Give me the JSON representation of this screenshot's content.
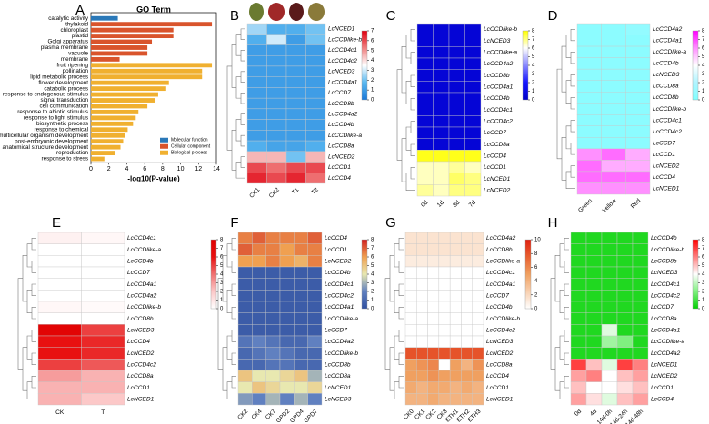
{
  "chart_data": [
    {
      "type": "bar",
      "panel": "A",
      "title": "GO Term",
      "x_label": "-log10(P-value)",
      "categories": [
        "catalytic activity",
        "thylakoid",
        "chloroplast",
        "plastid",
        "Golgi apparatus",
        "plasma membrane",
        "vacuole",
        "membrane",
        "fruit ripening",
        "pollination",
        "lipid metabolic process",
        "flower development",
        "catabolic process",
        "response to endogenous stimulus",
        "signal transduction",
        "cell communication",
        "response to abiotic stimulus",
        "response to light stimulus",
        "biosynthetic process",
        "response to chemical",
        "multicellular organism development",
        "post-embryonic development",
        "anatomical structure development",
        "reproduction",
        "response to stress"
      ],
      "series": [
        {
          "name": "Molecular function",
          "color": "#2a78b8",
          "values": [
            3,
            null,
            null,
            null,
            null,
            null,
            null,
            null,
            null,
            null,
            null,
            null,
            null,
            null,
            null,
            null,
            null,
            null,
            null,
            null,
            null,
            null,
            null,
            null,
            null
          ]
        },
        {
          "name": "Cellular component",
          "color": "#d9542c",
          "values": [
            null,
            13.5,
            9.2,
            9.2,
            6.8,
            6.3,
            6.3,
            3.2,
            null,
            null,
            null,
            null,
            null,
            null,
            null,
            null,
            null,
            null,
            null,
            null,
            null,
            null,
            null,
            null,
            null
          ]
        },
        {
          "name": "Biological process",
          "color": "#f0b030",
          "values": [
            null,
            null,
            null,
            null,
            null,
            null,
            null,
            null,
            13.5,
            12.4,
            12.4,
            8.7,
            8.4,
            7.5,
            7.2,
            6.3,
            5.3,
            5.0,
            4.7,
            4.1,
            3.8,
            3.6,
            3.3,
            2.7,
            1.5
          ]
        }
      ],
      "xlim": [
        0,
        14
      ],
      "xticks": [
        0,
        2,
        4,
        6,
        8,
        10,
        12,
        14
      ],
      "legend": "lower right"
    },
    {
      "type": "heatmap",
      "panel": "B",
      "categories": [
        "CK1",
        "CK2",
        "T1",
        "T2"
      ],
      "rows": [
        "LcNCED1",
        "LcCCDlike-b",
        "LcCCD4c1",
        "LcCCD4c2",
        "LcNCED3",
        "LcCCD4a1",
        "LcCCD7",
        "LcCCD8b",
        "LcCCD4a2",
        "LcCCD4b",
        "LcCCDlike-a",
        "LcCCD8a",
        "LcNCED2",
        "LcCCD1",
        "LcCCD4"
      ],
      "values": [
        [
          2.5,
          1.5,
          1.5,
          2
        ],
        [
          1.5,
          3,
          1,
          2
        ],
        [
          1,
          1,
          1,
          1
        ],
        [
          1,
          1,
          1,
          1
        ],
        [
          1,
          1,
          1,
          1
        ],
        [
          1,
          1,
          1,
          1
        ],
        [
          1,
          1,
          1,
          1
        ],
        [
          1,
          1,
          1,
          1
        ],
        [
          1,
          1,
          1,
          1
        ],
        [
          1,
          1,
          1,
          1
        ],
        [
          1,
          1,
          1,
          1
        ],
        [
          1.5,
          1.2,
          1.2,
          1.5
        ],
        [
          4.5,
          4.5,
          2,
          4.5
        ],
        [
          6,
          5.5,
          6,
          6
        ],
        [
          6.5,
          6,
          6.5,
          5.5
        ]
      ],
      "zlim": [
        0,
        7
      ],
      "zticks": [
        0,
        1,
        2,
        3,
        4,
        5,
        6,
        7
      ],
      "colormap": [
        "#1a78d8",
        "#5ab8f0",
        "#ffffff",
        "#f08080",
        "#e00010"
      ]
    },
    {
      "type": "heatmap",
      "panel": "C",
      "categories": [
        "0d",
        "1d",
        "3d",
        "7d"
      ],
      "rows": [
        "LcCCDlike-b",
        "LcNCED3",
        "LcCCDlike-a",
        "LcCCD4a2",
        "LcCCD8b",
        "LcCCD4a1",
        "LcCCD4b",
        "LcCCD4c1",
        "LcCCD4c2",
        "LcCCD7",
        "LcCCD8a",
        "LcCCD4",
        "LcCCD1",
        "LcNCED1",
        "LcNCED2"
      ],
      "values": [
        [
          0.5,
          0.5,
          0.5,
          0.5
        ],
        [
          0.5,
          0.5,
          0.5,
          0.5
        ],
        [
          0.5,
          0.5,
          0.5,
          0.5
        ],
        [
          0.5,
          0.5,
          0.5,
          0.5
        ],
        [
          0.5,
          0.5,
          0.5,
          0.5
        ],
        [
          0.5,
          0.5,
          0.5,
          0.5
        ],
        [
          0.5,
          0.5,
          0.5,
          0.5
        ],
        [
          0.5,
          0.5,
          0.5,
          0.5
        ],
        [
          0.5,
          0.5,
          0.5,
          0.5
        ],
        [
          0.5,
          0.5,
          0.5,
          0.5
        ],
        [
          0.5,
          0.5,
          0.5,
          0.5
        ],
        [
          7.8,
          7.8,
          7.8,
          7.8
        ],
        [
          6.5,
          6.5,
          6.8,
          6.5
        ],
        [
          6.5,
          6.5,
          7.2,
          7
        ],
        [
          6.8,
          6.5,
          7,
          7
        ]
      ],
      "zlim": [
        0,
        8
      ],
      "zticks": [
        0,
        1,
        2,
        3,
        4,
        5,
        6,
        7,
        8
      ],
      "colormap": [
        "#0000c8",
        "#1414ff",
        "#8888ff",
        "#ffffff",
        "#ffff00"
      ]
    },
    {
      "type": "heatmap",
      "panel": "D",
      "categories": [
        "Green",
        "Yellow",
        "Red"
      ],
      "rows": [
        "LcCCD4a2",
        "LcCCD4a1",
        "LcCCDlike-a",
        "LcCCD4b",
        "LcNCED3",
        "LcCCD8a",
        "LcCCD8b",
        "LcCCDlike-b",
        "LcCCD4c1",
        "LcCCD4c2",
        "LcCCD7",
        "LcCCD1",
        "LcNCED2",
        "LcCCD4",
        "LcNCED1"
      ],
      "values": [
        [
          0.5,
          0.5,
          0.8
        ],
        [
          0.5,
          0.5,
          0.5
        ],
        [
          0.5,
          0.5,
          0.5
        ],
        [
          0.5,
          0.5,
          0.5
        ],
        [
          0.5,
          0.5,
          0.5
        ],
        [
          0.5,
          0.5,
          0.5
        ],
        [
          0.5,
          0.5,
          0.5
        ],
        [
          0.5,
          0.5,
          0.5
        ],
        [
          0.5,
          0.5,
          0.5
        ],
        [
          0.5,
          0.5,
          0.5
        ],
        [
          0.5,
          0.5,
          0.5
        ],
        [
          6,
          6.5,
          5.5
        ],
        [
          6.5,
          5.5,
          5.5
        ],
        [
          6.5,
          6.5,
          6.5
        ],
        [
          6,
          6,
          6
        ]
      ],
      "zlim": [
        0,
        8
      ],
      "zticks": [
        0,
        1,
        2,
        3,
        4,
        5,
        6,
        7,
        8
      ],
      "colormap": [
        "#80ffff",
        "#b0f4ff",
        "#ffffff",
        "#ff90ff",
        "#ff00ff"
      ]
    },
    {
      "type": "heatmap",
      "panel": "E",
      "categories": [
        "CK",
        "T"
      ],
      "rows": [
        "LcCCD4c1",
        "LcCCDlike-a",
        "LcCCD4b",
        "LcCCD7",
        "LcCCD4a1",
        "LcCCD4a2",
        "LcCCDlike-b",
        "LcCCD8b",
        "LcNCED3",
        "LcCCD4",
        "LcNCED2",
        "LcCCD4c2",
        "LcCCD8a",
        "LcCCD1",
        "LcNCED1"
      ],
      "values": [
        [
          0.5,
          0.3
        ],
        [
          0,
          0
        ],
        [
          0,
          0
        ],
        [
          0,
          0
        ],
        [
          0,
          0
        ],
        [
          0,
          0
        ],
        [
          0.3,
          0.2
        ],
        [
          0,
          0
        ],
        [
          7.5,
          5
        ],
        [
          6,
          5.5
        ],
        [
          6,
          5.5
        ],
        [
          5,
          4.5
        ],
        [
          3,
          2.5
        ],
        [
          2.5,
          2.5
        ],
        [
          2.5,
          2
        ]
      ],
      "zlim": [
        0,
        8
      ],
      "zticks": [
        0,
        1,
        2,
        3,
        4,
        5,
        6,
        7,
        8
      ],
      "colormap": [
        "#ffffff",
        "#fcc8c8",
        "#f07070",
        "#e81010",
        "#e00000"
      ]
    },
    {
      "type": "heatmap",
      "panel": "F",
      "categories": [
        "CK2",
        "CK4",
        "CK7",
        "GPD2",
        "GPD4",
        "GPD7"
      ],
      "rows": [
        "LcCCD4",
        "LcCCD1",
        "LcNCED2",
        "LcCCD4b",
        "LcCCD4c1",
        "LcCCD4c2",
        "LcCCD4a1",
        "LcCCDlike-a",
        "LcCCD7",
        "LcCCD4a2",
        "LcCCDlike-b",
        "LcCCD8b",
        "LcCCD8a",
        "LcNCED1",
        "LcNCED3"
      ],
      "values": [
        [
          6.5,
          7,
          6.5,
          6.5,
          6.5,
          7
        ],
        [
          7,
          6.5,
          6.5,
          6,
          6.5,
          6.5
        ],
        [
          6,
          6,
          6.5,
          6,
          5.5,
          6.5
        ],
        [
          0.5,
          0.5,
          0.5,
          0.5,
          0.5,
          0.5
        ],
        [
          0.5,
          0.5,
          0.5,
          0.5,
          0.5,
          0.5
        ],
        [
          0.5,
          0.5,
          0.5,
          0.5,
          0.5,
          0.5
        ],
        [
          0.5,
          0.5,
          0.5,
          0.5,
          0.5,
          0.5
        ],
        [
          0.5,
          0.5,
          0.5,
          0.5,
          0.5,
          0.5
        ],
        [
          0.5,
          0.5,
          0.5,
          0.5,
          0.5,
          0.5
        ],
        [
          1.5,
          2,
          1.5,
          1,
          1,
          2
        ],
        [
          1,
          1.5,
          2,
          1.5,
          1,
          1
        ],
        [
          1,
          1,
          1.5,
          1.5,
          1,
          1
        ],
        [
          5,
          4,
          4,
          4.5,
          5,
          3
        ],
        [
          4,
          5,
          4.5,
          4,
          4,
          4.5
        ],
        [
          2.5,
          2,
          3,
          2,
          3,
          2
        ]
      ],
      "zlim": [
        0,
        8
      ],
      "zticks": [
        0,
        1,
        2,
        3,
        4,
        5,
        6,
        7,
        8
      ],
      "colormap": [
        "#3050a0",
        "#6080c0",
        "#e8e8b0",
        "#f0a050",
        "#d02020"
      ]
    },
    {
      "type": "heatmap",
      "panel": "G",
      "categories": [
        "CK0",
        "CK1",
        "CK2",
        "CK3",
        "ETH1",
        "ETH2",
        "ETH3"
      ],
      "rows": [
        "LcCCD4a2",
        "LcCCD8b",
        "LcCCDlike-a",
        "LcCCD4c1",
        "LcCCD4a1",
        "LcCCD7",
        "LcCCD4b",
        "LcCCDlike-b",
        "LcCCD4c2",
        "LcNCED3",
        "LcNCED2",
        "LcCCD8a",
        "LcCCD4",
        "LcCCD1",
        "LcNCED1"
      ],
      "values": [
        [
          1.5,
          1.5,
          1.5,
          1.5,
          1.5,
          1.5,
          1.5
        ],
        [
          1.5,
          1.5,
          1.5,
          1.5,
          1.5,
          1.5,
          1.5
        ],
        [
          1,
          1,
          1,
          1,
          1,
          1,
          1
        ],
        [
          0,
          0,
          0,
          0,
          0,
          0,
          0
        ],
        [
          0,
          0,
          0,
          0,
          0,
          0,
          0
        ],
        [
          0,
          0,
          0,
          0,
          0,
          0,
          0
        ],
        [
          0,
          0,
          0,
          0,
          0,
          0,
          0
        ],
        [
          0,
          0,
          0,
          0,
          0,
          0,
          0
        ],
        [
          0,
          0,
          0,
          0,
          0,
          0,
          0
        ],
        [
          0,
          0,
          0,
          0,
          0,
          0,
          0
        ],
        [
          8,
          8,
          8,
          8,
          8,
          8,
          8
        ],
        [
          5,
          5.5,
          6,
          0,
          5,
          4,
          5.5
        ],
        [
          5,
          5,
          5.5,
          5,
          5,
          5,
          5
        ],
        [
          4.5,
          4,
          4.5,
          4.5,
          4,
          4.5,
          4
        ],
        [
          4,
          4,
          4.5,
          4,
          4,
          4,
          4
        ]
      ],
      "zlim": [
        0,
        10
      ],
      "zticks": [
        0,
        2,
        4,
        6,
        8,
        10
      ],
      "colormap": [
        "#ffffff",
        "#f8d0b0",
        "#f0a060",
        "#e86030",
        "#e02010"
      ]
    },
    {
      "type": "heatmap",
      "panel": "H",
      "categories": [
        "0d",
        "4d",
        "14d-0h",
        "14d-24h",
        "14d-48h"
      ],
      "rows": [
        "LcCCD4b",
        "LcCCDlike-b",
        "LcCCD8b",
        "LcNCED3",
        "LcCCD4c1",
        "LcCCD4c2",
        "LcCCD7",
        "LcCCD8a",
        "LcCCD4a1",
        "LcCCDlike-a",
        "LcCCD4a2",
        "LcNCED1",
        "LcNCED2",
        "LcCCD1",
        "LcCCD4"
      ],
      "values": [
        [
          0.5,
          0.5,
          0.5,
          0.5,
          0.5
        ],
        [
          0.5,
          0.5,
          0.5,
          0.5,
          0.5
        ],
        [
          0.5,
          0.5,
          0.5,
          0.5,
          0.5
        ],
        [
          0.5,
          0.5,
          0.5,
          0.5,
          0.5
        ],
        [
          0.5,
          0.5,
          0.5,
          0.5,
          0.5
        ],
        [
          0.5,
          0.5,
          0.5,
          0.5,
          0.5
        ],
        [
          0.5,
          0.5,
          0.5,
          0.5,
          0.5
        ],
        [
          0.5,
          0.5,
          0.5,
          0.5,
          0.5
        ],
        [
          0.5,
          0.5,
          3.5,
          0.5,
          0.5
        ],
        [
          0.5,
          0.5,
          2.5,
          2,
          0.5
        ],
        [
          0.5,
          0.5,
          0.5,
          0.5,
          0.5
        ],
        [
          7,
          5,
          3.5,
          7,
          6
        ],
        [
          5.5,
          6,
          4,
          5,
          5.5
        ],
        [
          5,
          4,
          4,
          4.5,
          5
        ],
        [
          5.5,
          4.5,
          3.5,
          5,
          5.5
        ]
      ],
      "zlim": [
        0,
        8
      ],
      "zticks": [
        0,
        1,
        2,
        3,
        4,
        5,
        6,
        7,
        8
      ],
      "colormap": [
        "#00d000",
        "#80f080",
        "#ffffff",
        "#ff8080",
        "#ff0000"
      ]
    }
  ]
}
